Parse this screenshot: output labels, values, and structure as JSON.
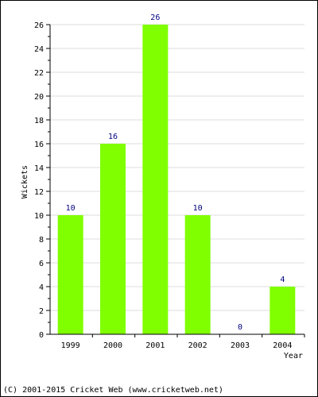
{
  "chart_data": {
    "type": "bar",
    "categories": [
      "1999",
      "2000",
      "2001",
      "2002",
      "2003",
      "2004"
    ],
    "values": [
      10,
      16,
      26,
      10,
      0,
      4
    ],
    "data_labels": [
      "10",
      "16",
      "26",
      "10",
      "0",
      "4"
    ],
    "xlabel": "Year",
    "ylabel": "Wickets",
    "ylim": [
      0,
      26
    ],
    "yticks": [
      0,
      2,
      4,
      6,
      8,
      10,
      12,
      14,
      16,
      18,
      20,
      22,
      24,
      26
    ],
    "grid": true,
    "bar_color": "#80ff00",
    "grid_color": "#dddddd",
    "label_color": "#000080"
  },
  "footer": {
    "copyright": "(C) 2001-2015 Cricket Web (www.cricketweb.net)"
  }
}
